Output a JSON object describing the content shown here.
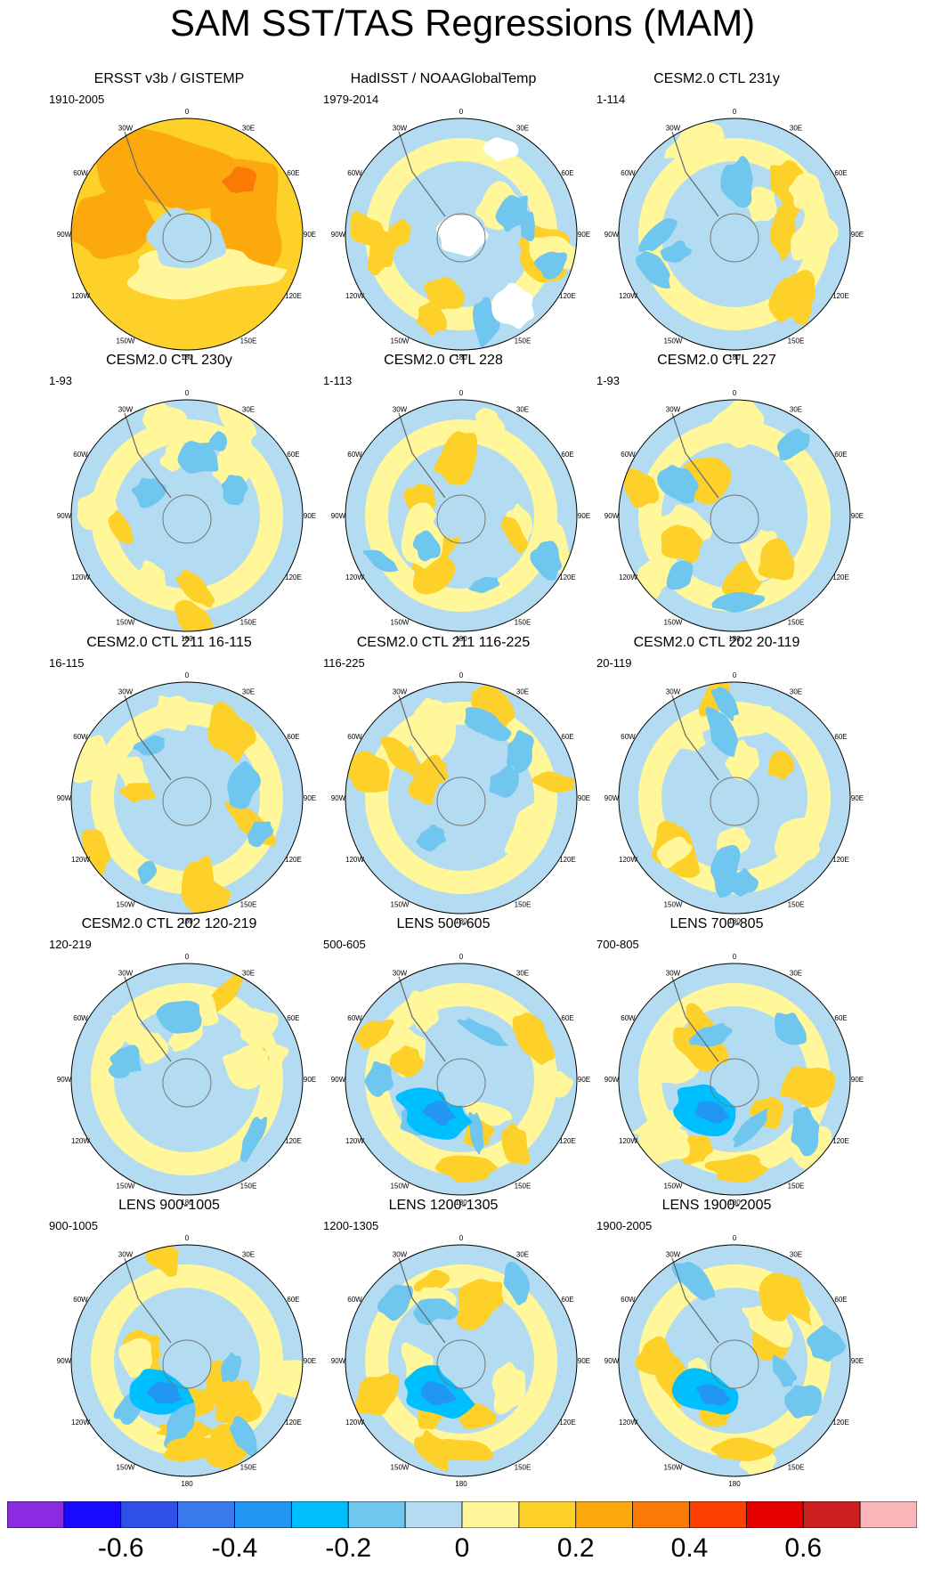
{
  "title": "SAM SST/TAS Regressions (MAM)",
  "panels": [
    {
      "title": "ERSST v3b / GISTEMP",
      "period": "1910-2005",
      "pattern": "warm"
    },
    {
      "title": "HadISST / NOAAGlobalTemp",
      "period": "1979-2014",
      "pattern": "mixed_missing"
    },
    {
      "title": "CESM2.0 CTL 231y",
      "period": "1-114",
      "pattern": "mixed"
    },
    {
      "title": "CESM2.0 CTL 230y",
      "period": "1-93",
      "pattern": "mixed"
    },
    {
      "title": "CESM2.0 CTL 228",
      "period": "1-113",
      "pattern": "mixed"
    },
    {
      "title": "CESM2.0 CTL 227",
      "period": "1-93",
      "pattern": "mixed"
    },
    {
      "title": "CESM2.0 CTL 211 16-115",
      "period": "16-115",
      "pattern": "mixed"
    },
    {
      "title": "CESM2.0 CTL 211 116-225",
      "period": "116-225",
      "pattern": "mixed"
    },
    {
      "title": "CESM2.0 CTL 202 20-119",
      "period": "20-119",
      "pattern": "mixed"
    },
    {
      "title": "CESM2.0 CTL 202 120-219",
      "period": "120-219",
      "pattern": "mixed"
    },
    {
      "title": "LENS 500-605",
      "period": "500-605",
      "pattern": "strong"
    },
    {
      "title": "LENS 700-805",
      "period": "700-805",
      "pattern": "strong"
    },
    {
      "title": "LENS 900-1005",
      "period": "900-1005",
      "pattern": "strong"
    },
    {
      "title": "LENS 1200-1305",
      "period": "1200-1305",
      "pattern": "strong"
    },
    {
      "title": "LENS 1900-2005",
      "period": "1900-2005",
      "pattern": "strong"
    }
  ],
  "map_labels": [
    "0",
    "30E",
    "60E",
    "90E",
    "120E",
    "150E",
    "180",
    "150W",
    "120W",
    "90W",
    "60W",
    "30W"
  ],
  "colorbar": {
    "colors": [
      "#8a2be2",
      "#1a0aff",
      "#2f50e6",
      "#3a78ee",
      "#2196f3",
      "#00bfff",
      "#6fc6ee",
      "#b3dcf2",
      "#fff79a",
      "#fdd02a",
      "#fba90d",
      "#fb7a06",
      "#fd3f00",
      "#e60000",
      "#cc1f1f",
      "#f9b5b8"
    ],
    "tick_labels": [
      "-0.6",
      "-0.4",
      "-0.2",
      "0",
      "0.2",
      "0.4",
      "0.6"
    ],
    "tick_values": [
      -0.6,
      -0.4,
      -0.2,
      0,
      0.2,
      0.4,
      0.6
    ],
    "levels": [
      -0.7,
      -0.6,
      -0.5,
      -0.4,
      -0.3,
      -0.2,
      -0.1,
      0,
      0.1,
      0.2,
      0.3,
      0.4,
      0.5,
      0.6,
      0.7
    ]
  },
  "chart_data": {
    "type": "heatmap",
    "projection": "south polar stereographic",
    "title": "SAM SST/TAS Regressions (MAM)",
    "colorbar_range": [
      -0.7,
      0.7
    ],
    "panel_count": 15
  }
}
